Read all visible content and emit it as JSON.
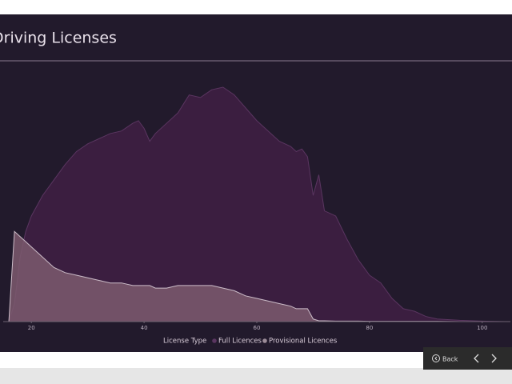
{
  "chart_data": {
    "type": "area",
    "title": "Driving Licenses",
    "legend_title": "License Type",
    "x": [
      16,
      17,
      18,
      19,
      20,
      22,
      24,
      26,
      28,
      30,
      32,
      34,
      36,
      38,
      39,
      40,
      41,
      42,
      44,
      46,
      48,
      50,
      52,
      54,
      56,
      58,
      60,
      62,
      64,
      66,
      67,
      68,
      69,
      70,
      71,
      72,
      74,
      76,
      78,
      80,
      82,
      84,
      86,
      88,
      90,
      92,
      96,
      100,
      104
    ],
    "series": [
      {
        "name": "Full Licences",
        "color": "#3b1e40",
        "values": [
          0,
          7,
          25,
          35,
          41,
          49,
          55,
          61,
          66,
          69,
          71,
          73,
          74,
          77,
          78,
          75,
          70,
          73,
          77,
          81,
          88,
          87,
          90,
          91,
          88,
          83,
          78,
          74,
          70,
          68,
          66,
          67,
          64,
          49,
          57,
          43,
          41,
          32,
          24,
          18,
          15,
          9,
          5,
          4,
          2,
          1,
          0.5,
          0.2,
          0
        ]
      },
      {
        "name": "Provisional Licences",
        "color": "#7d5a6e",
        "values": [
          0,
          35,
          33,
          31,
          29,
          25,
          21,
          19,
          18,
          17,
          16,
          15,
          15,
          14,
          14,
          14,
          14,
          13,
          13,
          14,
          14,
          14,
          14,
          13,
          12,
          10,
          9,
          8,
          7,
          6,
          5,
          5,
          5,
          1,
          0.3,
          0.3,
          0.2,
          0.2,
          0.2,
          0.1,
          0.1,
          0.1,
          0.1,
          0.1,
          0.1,
          0.1,
          0,
          0,
          0
        ]
      }
    ],
    "xlim": [
      15,
      105
    ],
    "xticks": [
      20,
      40,
      60,
      80,
      100
    ],
    "ylim": [
      0,
      100
    ]
  },
  "ui": {
    "back_label": "Back"
  }
}
